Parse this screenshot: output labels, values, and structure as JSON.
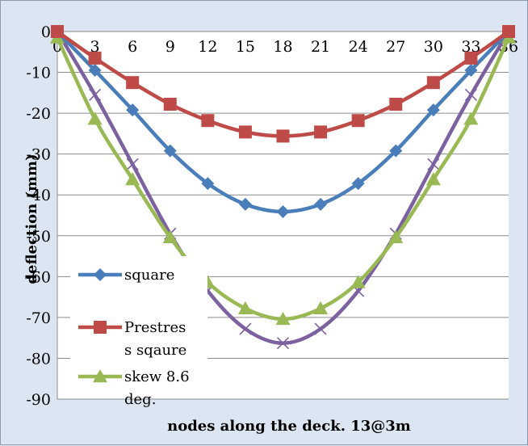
{
  "chart_data": {
    "type": "line",
    "title": "",
    "xlabel": "nodes along the deck. 13@3m",
    "ylabel": "deflection (mm)",
    "x": [
      0,
      3,
      6,
      9,
      12,
      15,
      18,
      21,
      24,
      27,
      30,
      33,
      36
    ],
    "ylim": [
      -90,
      0
    ],
    "yticks": [
      0,
      -10,
      -20,
      -30,
      -40,
      -50,
      -60,
      -70,
      -80,
      -90
    ],
    "grid": "horizontal",
    "legend_position": "bottom-left",
    "series": [
      {
        "name": "square",
        "marker": "diamond",
        "color": "#4a7ebb",
        "values": [
          0,
          -9.5,
          -19.2,
          -29.2,
          -37.2,
          -42.3,
          -44.1,
          -42.3,
          -37.2,
          -29.2,
          -19.2,
          -9.5,
          0
        ]
      },
      {
        "name": "Prestres s sqaure",
        "marker": "square",
        "color": "#be4b48",
        "values": [
          0,
          -6.5,
          -12.5,
          -17.8,
          -21.8,
          -24.6,
          -25.6,
          -24.6,
          -21.8,
          -17.8,
          -12.5,
          -6.5,
          0
        ]
      },
      {
        "name": "skew 8.6 deg.",
        "marker": "triangle",
        "color": "#98b954",
        "values": [
          -1.5,
          -21.4,
          -36.2,
          -50.4,
          -61.4,
          -67.8,
          -70.4,
          -67.8,
          -61.4,
          -50.4,
          -36.2,
          -21.4,
          -1.5
        ]
      },
      {
        "name": "",
        "marker": "x",
        "color": "#7d60a0",
        "values": [
          0,
          -15.5,
          -32.5,
          -49.5,
          -63.5,
          -72.8,
          -76.3,
          -72.8,
          -63.5,
          -49.5,
          -32.5,
          -15.5,
          0
        ]
      }
    ]
  }
}
